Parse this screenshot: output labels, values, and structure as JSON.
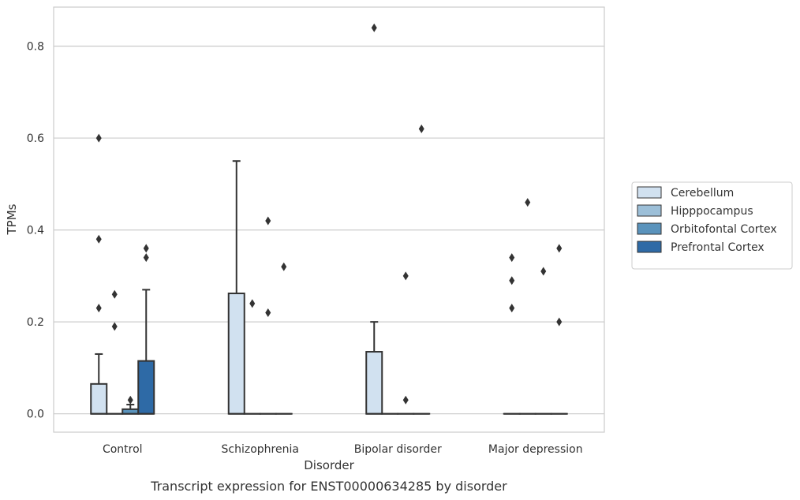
{
  "chart_data": {
    "type": "box",
    "caption": "Transcript expression for ENST00000634285 by disorder",
    "xlabel": "Disorder",
    "ylabel": "TPMs",
    "ylim": [
      -0.04,
      0.885
    ],
    "yticks": [
      0.0,
      0.2,
      0.4,
      0.6,
      0.8
    ],
    "ytick_labels": [
      "0.0",
      "0.2",
      "0.4",
      "0.6",
      "0.8"
    ],
    "grid": "horizontal",
    "legend_position": "right",
    "categories": [
      "Control",
      "Schizophrenia",
      "Bipolar disorder",
      "Major depression"
    ],
    "series": [
      {
        "name": "Cerebellum",
        "color": "#d1e1f0",
        "boxes": [
          {
            "min": 0,
            "q1": 0,
            "median": 0,
            "q3": 0.065,
            "max": 0.13,
            "outliers": [
              0.23,
              0.38,
              0.6
            ]
          },
          {
            "min": 0,
            "q1": 0,
            "median": 0,
            "q3": 0.262,
            "max": 0.55,
            "outliers": []
          },
          {
            "min": 0,
            "q1": 0,
            "median": 0,
            "q3": 0.135,
            "max": 0.2,
            "outliers": [
              0.84
            ]
          },
          {
            "min": 0,
            "q1": 0,
            "median": 0,
            "q3": 0,
            "max": 0,
            "outliers": [
              0.23,
              0.29,
              0.34
            ]
          }
        ]
      },
      {
        "name": "Hipppocampus",
        "color": "#9cbfd8",
        "boxes": [
          {
            "min": 0,
            "q1": 0,
            "median": 0,
            "q3": 0,
            "max": 0,
            "outliers": [
              0.19,
              0.26
            ]
          },
          {
            "min": 0,
            "q1": 0,
            "median": 0,
            "q3": 0,
            "max": 0,
            "outliers": [
              0.24
            ]
          },
          {
            "min": 0,
            "q1": 0,
            "median": 0,
            "q3": 0,
            "max": 0,
            "outliers": []
          },
          {
            "min": 0,
            "q1": 0,
            "median": 0,
            "q3": 0,
            "max": 0,
            "outliers": [
              0.46
            ]
          }
        ]
      },
      {
        "name": "Orbitofontal Cortex",
        "color": "#5a93bc",
        "boxes": [
          {
            "min": 0,
            "q1": 0,
            "median": 0,
            "q3": 0.01,
            "max": 0.02,
            "outliers": [
              0.03
            ]
          },
          {
            "min": 0,
            "q1": 0,
            "median": 0,
            "q3": 0,
            "max": 0,
            "outliers": [
              0.22,
              0.42
            ]
          },
          {
            "min": 0,
            "q1": 0,
            "median": 0,
            "q3": 0,
            "max": 0,
            "outliers": [
              0.03,
              0.3
            ]
          },
          {
            "min": 0,
            "q1": 0,
            "median": 0,
            "q3": 0,
            "max": 0,
            "outliers": [
              0.31
            ]
          }
        ]
      },
      {
        "name": "Prefrontal Cortex",
        "color": "#2e6aa6",
        "boxes": [
          {
            "min": 0,
            "q1": 0,
            "median": 0,
            "q3": 0.115,
            "max": 0.27,
            "outliers": [
              0.34,
              0.36
            ]
          },
          {
            "min": 0,
            "q1": 0,
            "median": 0,
            "q3": 0,
            "max": 0,
            "outliers": [
              0.32
            ]
          },
          {
            "min": 0,
            "q1": 0,
            "median": 0,
            "q3": 0,
            "max": 0,
            "outliers": [
              0.62
            ]
          },
          {
            "min": 0,
            "q1": 0,
            "median": 0,
            "q3": 0,
            "max": 0,
            "outliers": [
              0.2,
              0.36
            ]
          }
        ]
      }
    ]
  }
}
